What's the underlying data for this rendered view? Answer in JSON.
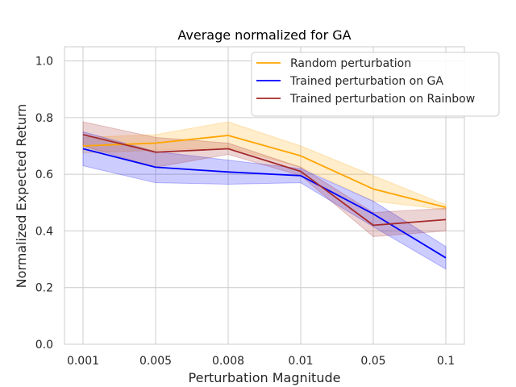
{
  "chart_data": {
    "type": "line",
    "title": "Average normalized for GA",
    "xlabel": "Perturbation Magnitude",
    "ylabel": "Normalized Expected Return",
    "categories": [
      "0.001",
      "0.005",
      "0.008",
      "0.01",
      "0.05",
      "0.1"
    ],
    "ylim": [
      0.0,
      1.05
    ],
    "yticks": [
      0.0,
      0.2,
      0.4,
      0.6,
      0.8,
      1.0
    ],
    "ytick_labels": [
      "0.0",
      "0.2",
      "0.4",
      "0.6",
      "0.8",
      "1.0"
    ],
    "grid": true,
    "legend_position": "top-right",
    "series": [
      {
        "name": "Random perturbation",
        "color": "#ffa500",
        "values": [
          0.7,
          0.71,
          0.737,
          0.665,
          0.548,
          0.483
        ],
        "lower": [
          0.675,
          0.685,
          0.695,
          0.625,
          0.505,
          0.475
        ],
        "upper": [
          0.73,
          0.74,
          0.785,
          0.7,
          0.595,
          0.492
        ]
      },
      {
        "name": "Trained perturbation on GA",
        "color": "#0000ff",
        "values": [
          0.69,
          0.625,
          0.608,
          0.595,
          0.46,
          0.305
        ],
        "lower": [
          0.63,
          0.57,
          0.565,
          0.57,
          0.415,
          0.265
        ],
        "upper": [
          0.75,
          0.68,
          0.65,
          0.62,
          0.505,
          0.345
        ]
      },
      {
        "name": "Trained perturbation on Rainbow",
        "color": "#a52a2a",
        "values": [
          0.74,
          0.678,
          0.69,
          0.61,
          0.42,
          0.44
        ],
        "lower": [
          0.7,
          0.625,
          0.67,
          0.595,
          0.38,
          0.4
        ],
        "upper": [
          0.785,
          0.73,
          0.71,
          0.625,
          0.465,
          0.48
        ]
      }
    ]
  }
}
